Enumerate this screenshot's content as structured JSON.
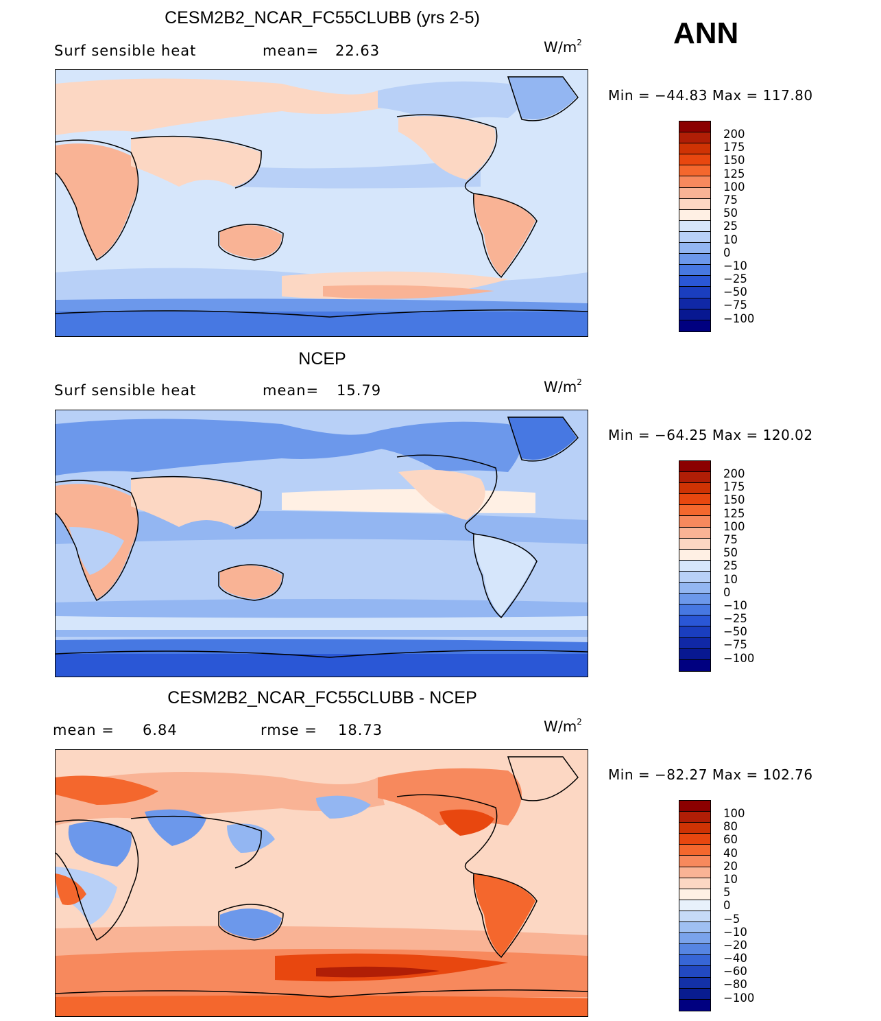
{
  "season": "ANN",
  "panels": [
    {
      "title": "CESM2B2_NCAR_FC55CLUBB (yrs 2-5)",
      "left_label": "Surf sensible heat",
      "mid_label": "mean=",
      "mid_value": "22.63",
      "units_base": "W/m",
      "units_exp": "2",
      "minmax": "Min = −44.83 Max = 117.80",
      "colorbar": {
        "colors": [
          "#8b0000",
          "#b01e06",
          "#cf3304",
          "#e8470f",
          "#f4672d",
          "#f7895d",
          "#f9b395",
          "#fcd7c3",
          "#fff0e4",
          "#d6e6fb",
          "#b8d0f7",
          "#93b6f2",
          "#6c98eb",
          "#4778e2",
          "#2a57d6",
          "#1a3ebf",
          "#1028a6",
          "#081891",
          "#000080"
        ],
        "labels": [
          "200",
          "175",
          "150",
          "125",
          "100",
          "75",
          "50",
          "25",
          "10",
          "0",
          "−10",
          "−25",
          "−50",
          "−75",
          "−100"
        ]
      }
    },
    {
      "title": "NCEP",
      "left_label": "Surf sensible heat",
      "mid_label": "mean=",
      "mid_value": "15.79",
      "units_base": "W/m",
      "units_exp": "2",
      "minmax": "Min = −64.25 Max = 120.02",
      "colorbar": {
        "colors": [
          "#8b0000",
          "#b01e06",
          "#cf3304",
          "#e8470f",
          "#f4672d",
          "#f7895d",
          "#f9b395",
          "#fcd7c3",
          "#fff0e4",
          "#d6e6fb",
          "#b8d0f7",
          "#93b6f2",
          "#6c98eb",
          "#4778e2",
          "#2a57d6",
          "#1a3ebf",
          "#1028a6",
          "#081891",
          "#000080"
        ],
        "labels": [
          "200",
          "175",
          "150",
          "125",
          "100",
          "75",
          "50",
          "25",
          "10",
          "0",
          "−10",
          "−25",
          "−50",
          "−75",
          "−100"
        ]
      }
    },
    {
      "title": "CESM2B2_NCAR_FC55CLUBB - NCEP",
      "left_label": "mean =",
      "left_value": "6.84",
      "mid_label": "rmse =",
      "mid_value": "18.73",
      "units_base": "W/m",
      "units_exp": "2",
      "minmax": "Min = −82.27 Max = 102.76",
      "colorbar": {
        "colors": [
          "#8b0000",
          "#b01e06",
          "#cf3304",
          "#e8470f",
          "#f4672d",
          "#f7895d",
          "#f9b395",
          "#fcd7c3",
          "#fff0e4",
          "#e8f1fb",
          "#c6dbf7",
          "#9fc0f2",
          "#7aa3eb",
          "#5685e2",
          "#3766d6",
          "#2249c2",
          "#1331a8",
          "#081c90",
          "#000080"
        ],
        "labels": [
          "100",
          "80",
          "60",
          "40",
          "20",
          "10",
          "5",
          "0",
          "−5",
          "−10",
          "−20",
          "−40",
          "−60",
          "−80",
          "−100"
        ]
      }
    }
  ]
}
